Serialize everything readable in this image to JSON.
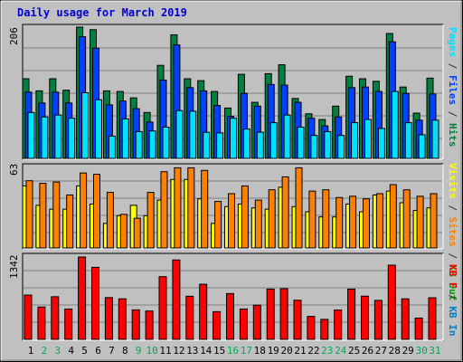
{
  "title": "Daily usage for March 2019",
  "colors": {
    "hits": "#008040",
    "files": "#0040ff",
    "pages": "#00e0ff",
    "visits": "#ffff00",
    "sites": "#ff8000",
    "kbf": "#ff0000",
    "kbin": "#0080c0",
    "kbout": "#00a000",
    "weekend": "#00aa55",
    "title": "#0000cc",
    "separator": "#333333"
  },
  "days": [
    "1",
    "2",
    "3",
    "4",
    "5",
    "6",
    "7",
    "8",
    "9",
    "10",
    "11",
    "12",
    "13",
    "14",
    "15",
    "16",
    "17",
    "18",
    "19",
    "20",
    "21",
    "22",
    "23",
    "24",
    "25",
    "26",
    "27",
    "28",
    "29",
    "30",
    "31"
  ],
  "weekend_days": [
    2,
    3,
    9,
    10,
    16,
    17,
    23,
    24,
    30,
    31
  ],
  "legends": {
    "top": [
      "Pages",
      "Files",
      "Hits"
    ],
    "middle": [
      "Visits",
      "Sites",
      "KB Out"
    ],
    "bottom": [
      "KB In",
      "KB F"
    ],
    "separator": " / "
  },
  "chart_data": [
    {
      "type": "bar",
      "panel": "top",
      "ymax_label": "206",
      "ylim": [
        0,
        206
      ],
      "series": [
        {
          "name": "Hits",
          "values": [
            125,
            106,
            125,
            107,
            206,
            202,
            106,
            105,
            95,
            72,
            146,
            194,
            125,
            122,
            105,
            79,
            132,
            88,
            133,
            147,
            94,
            70,
            61,
            82,
            129,
            125,
            121,
            196,
            112,
            71,
            126
          ]
        },
        {
          "name": "Files",
          "values": [
            104,
            87,
            104,
            87,
            191,
            173,
            84,
            90,
            78,
            57,
            123,
            178,
            111,
            106,
            83,
            66,
            102,
            82,
            116,
            115,
            88,
            63,
            51,
            65,
            111,
            112,
            105,
            183,
            102,
            60,
            101
          ]
        },
        {
          "name": "Pages",
          "values": [
            72,
            65,
            68,
            63,
            103,
            92,
            35,
            62,
            42,
            43,
            49,
            75,
            74,
            41,
            40,
            63,
            46,
            41,
            56,
            68,
            49,
            36,
            42,
            36,
            56,
            61,
            47,
            105,
            56,
            37,
            60
          ]
        }
      ]
    },
    {
      "type": "bar",
      "panel": "middle",
      "ymax_label": "63",
      "ylim": [
        0,
        63
      ],
      "series": [
        {
          "name": "Visits",
          "values": [
            48,
            33,
            30,
            30,
            48,
            34,
            19,
            25,
            33,
            25,
            37,
            53,
            53,
            38,
            19,
            32,
            34,
            31,
            30,
            47,
            32,
            28,
            24,
            24,
            34,
            28,
            41,
            44,
            35,
            29,
            31
          ]
        },
        {
          "name": "Sites",
          "values": [
            52,
            50,
            51,
            41,
            58,
            57,
            43,
            26,
            23,
            43,
            59,
            62,
            62,
            60,
            36,
            42,
            48,
            37,
            45,
            55,
            62,
            44,
            45,
            39,
            40,
            38,
            42,
            49,
            45,
            40,
            42
          ]
        }
      ]
    },
    {
      "type": "bar",
      "panel": "bottom",
      "ymax_label": "1342",
      "ylim": [
        0,
        1342
      ],
      "series": [
        {
          "name": "KB F",
          "values": [
            722,
            527,
            695,
            494,
            1342,
            1174,
            681,
            661,
            481,
            462,
            1022,
            1294,
            703,
            898,
            452,
            747,
            495,
            558,
            820,
            826,
            638,
            374,
            326,
            478,
            819,
            704,
            635,
            1209,
            661,
            347,
            678
          ]
        }
      ]
    }
  ]
}
